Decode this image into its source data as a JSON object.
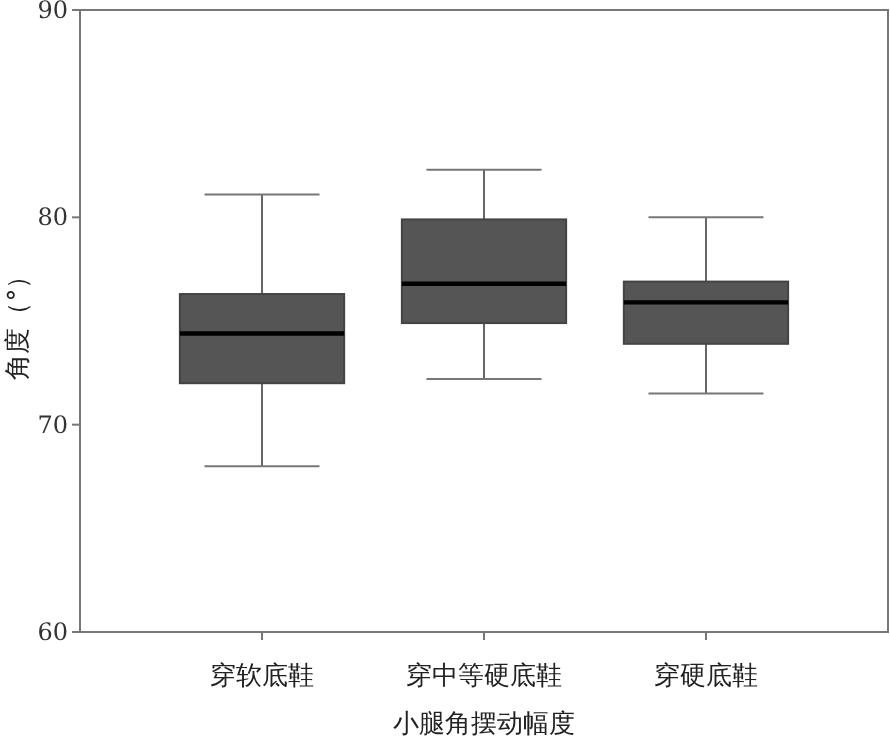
{
  "chart_data": {
    "type": "box",
    "xlabel": "小腿角摆动幅度",
    "ylabel": "角度（°）",
    "categories": [
      "穿软底鞋",
      "穿中等硬底鞋",
      "穿硬底鞋"
    ],
    "boxes": [
      {
        "low": 68.0,
        "q1": 72.0,
        "median": 74.4,
        "q3": 76.3,
        "high": 81.1
      },
      {
        "low": 72.2,
        "q1": 74.9,
        "median": 76.8,
        "q3": 79.9,
        "high": 82.3
      },
      {
        "low": 71.5,
        "q1": 73.9,
        "median": 75.9,
        "q3": 76.9,
        "high": 80.0
      }
    ],
    "color": "#555555",
    "ylim": [
      60,
      90
    ],
    "yticks": [
      60,
      70,
      80,
      90
    ]
  }
}
